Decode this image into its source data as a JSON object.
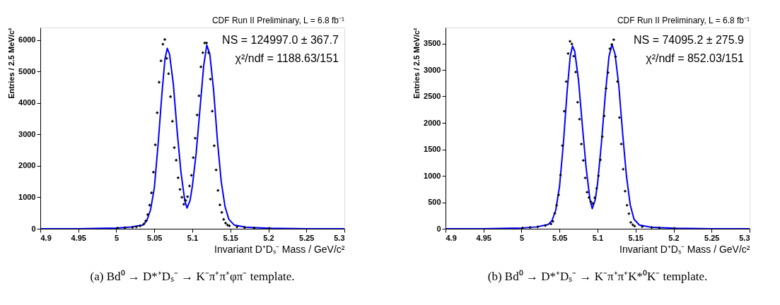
{
  "chart_data": [
    {
      "type": "scatter",
      "xlabel": "Invariant D⁺Dₛ⁻ Mass / GeV/c²",
      "ylabel": "Entries / 2.5 MeV/c²",
      "annotations": [
        "CDF Run II Preliminary, L = 6.8 fb⁻¹",
        "NS = 124997.0 ± 367.7",
        "χ²/ndf = 1188.63/151",
        "(a) Bd⁰ → D*⁺Dₛ⁻ → K⁻π⁺π⁺φπ⁻ template."
      ],
      "xlim": [
        4.9,
        5.3
      ],
      "xticks": [
        4.9,
        4.95,
        5,
        5.05,
        5.1,
        5.15,
        5.2,
        5.25,
        5.3
      ],
      "ylim": [
        0,
        6400
      ],
      "yticks": [
        0,
        1000,
        2000,
        3000,
        4000,
        5000,
        6000
      ],
      "grid": false,
      "series": [
        {
          "type": "line",
          "color": "#0000ff",
          "x": [
            4.9,
            4.95,
            5.0,
            5.02,
            5.035,
            5.04,
            5.045,
            5.05,
            5.055,
            5.06,
            5.064,
            5.067,
            5.07,
            5.075,
            5.08,
            5.085,
            5.09,
            5.093,
            5.097,
            5.1,
            5.105,
            5.11,
            5.115,
            5.119,
            5.123,
            5.128,
            5.133,
            5.138,
            5.143,
            5.148,
            5.155,
            5.17,
            5.2,
            5.25,
            5.3
          ],
          "values": [
            0,
            0,
            25,
            55,
            120,
            250,
            600,
            1300,
            2700,
            4300,
            5400,
            5740,
            5550,
            4600,
            3100,
            1800,
            900,
            660,
            900,
            1350,
            2400,
            3800,
            5200,
            5840,
            5550,
            4400,
            2800,
            1500,
            700,
            300,
            120,
            50,
            15,
            0,
            0
          ]
        },
        {
          "marker": "cross",
          "color": "#000000",
          "x": [
            5.00125,
            5.01125,
            5.02125,
            5.02625,
            5.03125,
            5.03625,
            5.03875,
            5.04125,
            5.04375,
            5.04625,
            5.04875,
            5.05125,
            5.05375,
            5.05625,
            5.05875,
            5.06125,
            5.06375,
            5.06625,
            5.06875,
            5.07125,
            5.07375,
            5.07625,
            5.07875,
            5.08125,
            5.08375,
            5.08625,
            5.08875,
            5.09125,
            5.09375,
            5.09625,
            5.09875,
            5.10125,
            5.10375,
            5.10625,
            5.10875,
            5.11125,
            5.11375,
            5.11625,
            5.11875,
            5.12125,
            5.12375,
            5.12625,
            5.12875,
            5.13125,
            5.13375,
            5.13625,
            5.13875,
            5.14125,
            5.14375,
            5.14625,
            5.14875,
            5.15875,
            5.16875,
            5.18125,
            5.20125
          ],
          "values": [
            20,
            30,
            50,
            60,
            90,
            150,
            250,
            450,
            750,
            1140,
            1800,
            2670,
            3690,
            4660,
            5340,
            5870,
            6020,
            5420,
            4930,
            4200,
            3420,
            2580,
            2180,
            1620,
            1250,
            1000,
            780,
            900,
            1020,
            1360,
            1700,
            2260,
            2880,
            3620,
            4230,
            5150,
            5600,
            5910,
            5910,
            5600,
            4760,
            3740,
            2640,
            1870,
            1220,
            760,
            520,
            300,
            180,
            120,
            90,
            60,
            40,
            25,
            15
          ]
        }
      ]
    },
    {
      "type": "scatter",
      "xlabel": "Invariant D⁺Dₛ⁻ Mass / GeV/c²",
      "ylabel": "Entries / 2.5 MeV/c²",
      "annotations": [
        "CDF Run II Preliminary, L = 6.8 fb⁻¹",
        "NS = 74095.2 ± 275.9",
        "χ²/ndf = 852.03/151",
        "(b) Bd⁰ → D*⁺Dₛ⁻ → K⁻π⁺π⁺K*⁰K⁻ template."
      ],
      "xlim": [
        4.9,
        5.3
      ],
      "xticks": [
        4.9,
        4.95,
        5,
        5.05,
        5.1,
        5.15,
        5.2,
        5.25,
        5.3
      ],
      "ylim": [
        0,
        3800
      ],
      "yticks": [
        0,
        500,
        1000,
        1500,
        2000,
        2500,
        3000,
        3500
      ],
      "grid": false,
      "series": [
        {
          "type": "line",
          "color": "#0000ff",
          "x": [
            4.9,
            4.95,
            5.0,
            5.02,
            5.035,
            5.04,
            5.045,
            5.05,
            5.055,
            5.06,
            5.064,
            5.067,
            5.07,
            5.075,
            5.08,
            5.085,
            5.09,
            5.093,
            5.097,
            5.1,
            5.105,
            5.11,
            5.115,
            5.119,
            5.123,
            5.128,
            5.133,
            5.138,
            5.143,
            5.148,
            5.155,
            5.17,
            5.2,
            5.25,
            5.3
          ],
          "values": [
            0,
            0,
            15,
            35,
            80,
            150,
            350,
            800,
            1600,
            2600,
            3250,
            3450,
            3350,
            2800,
            1950,
            1150,
            550,
            380,
            550,
            850,
            1600,
            2500,
            3250,
            3480,
            3300,
            2700,
            1800,
            1000,
            450,
            180,
            70,
            30,
            10,
            0,
            0
          ]
        },
        {
          "marker": "cross",
          "color": "#000000",
          "x": [
            5.00125,
            5.01125,
            5.02125,
            5.03125,
            5.03875,
            5.04125,
            5.04375,
            5.04625,
            5.04875,
            5.05125,
            5.05375,
            5.05625,
            5.05875,
            5.06125,
            5.06375,
            5.06625,
            5.06875,
            5.07125,
            5.07375,
            5.07625,
            5.07875,
            5.08125,
            5.08375,
            5.08625,
            5.08875,
            5.09125,
            5.09375,
            5.09625,
            5.09875,
            5.10125,
            5.10375,
            5.10625,
            5.10875,
            5.11125,
            5.11375,
            5.11625,
            5.11875,
            5.12125,
            5.12375,
            5.12625,
            5.12875,
            5.13125,
            5.13375,
            5.13625,
            5.13875,
            5.14125,
            5.14375,
            5.14625,
            5.14875,
            5.15875,
            5.17125,
            5.18125,
            5.20125
          ],
          "values": [
            15,
            25,
            35,
            60,
            90,
            140,
            290,
            445,
            640,
            1015,
            1570,
            2220,
            2780,
            3310,
            3540,
            3490,
            3260,
            2960,
            2390,
            2070,
            1600,
            1290,
            960,
            690,
            590,
            510,
            475,
            585,
            765,
            1000,
            1300,
            1740,
            2130,
            2650,
            2950,
            3400,
            3480,
            3570,
            3250,
            2780,
            2100,
            1600,
            1125,
            710,
            445,
            285,
            120,
            75,
            50,
            40,
            25,
            15,
            8
          ]
        }
      ]
    }
  ]
}
